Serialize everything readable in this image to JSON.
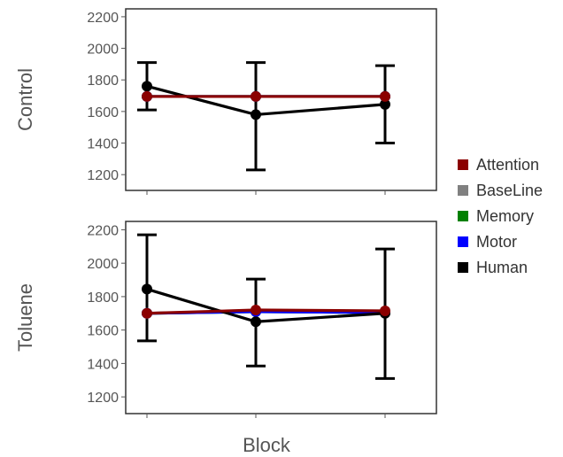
{
  "chart_data": {
    "type": "line",
    "xlabel": "Block",
    "categories": [
      "",
      "",
      ""
    ],
    "ylim": [
      1100,
      2250
    ],
    "yticks": [
      1200,
      1400,
      1600,
      1800,
      2000,
      2200
    ],
    "legend": {
      "placement": "right",
      "items": [
        {
          "name": "Attention",
          "color": "#8b0000"
        },
        {
          "name": "BaseLine",
          "color": "#808080"
        },
        {
          "name": "Memory",
          "color": "#008000"
        },
        {
          "name": "Motor",
          "color": "#0000ff"
        },
        {
          "name": "Human",
          "color": "#000000"
        }
      ]
    },
    "panels": [
      {
        "label": "Control",
        "series": [
          {
            "name": "BaseLine",
            "color": "#808080",
            "values": [
              1695,
              1695,
              1695
            ]
          },
          {
            "name": "Memory",
            "color": "#008000",
            "values": [
              1695,
              1695,
              1695
            ]
          },
          {
            "name": "Motor",
            "color": "#0000ff",
            "values": [
              1695,
              1695,
              1695
            ]
          },
          {
            "name": "Human",
            "color": "#000000",
            "values": [
              1760,
              1580,
              1645
            ],
            "error_low": [
              1610,
              1230,
              1400
            ],
            "error_high": [
              1910,
              1910,
              1890
            ]
          },
          {
            "name": "Attention",
            "color": "#8b0000",
            "values": [
              1695,
              1695,
              1695
            ]
          }
        ]
      },
      {
        "label": "Toluene",
        "series": [
          {
            "name": "BaseLine",
            "color": "#808080",
            "values": [
              1700,
              1710,
              1705
            ]
          },
          {
            "name": "Memory",
            "color": "#008000",
            "values": [
              1700,
              1710,
              1705
            ]
          },
          {
            "name": "Motor",
            "color": "#0000ff",
            "values": [
              1700,
              1710,
              1705
            ]
          },
          {
            "name": "Human",
            "color": "#000000",
            "values": [
              1845,
              1650,
              1700
            ],
            "error_low": [
              1535,
              1385,
              1310
            ],
            "error_high": [
              2170,
              1905,
              2085
            ]
          },
          {
            "name": "Attention",
            "color": "#8b0000",
            "values": [
              1700,
              1720,
              1715
            ]
          }
        ]
      }
    ]
  }
}
